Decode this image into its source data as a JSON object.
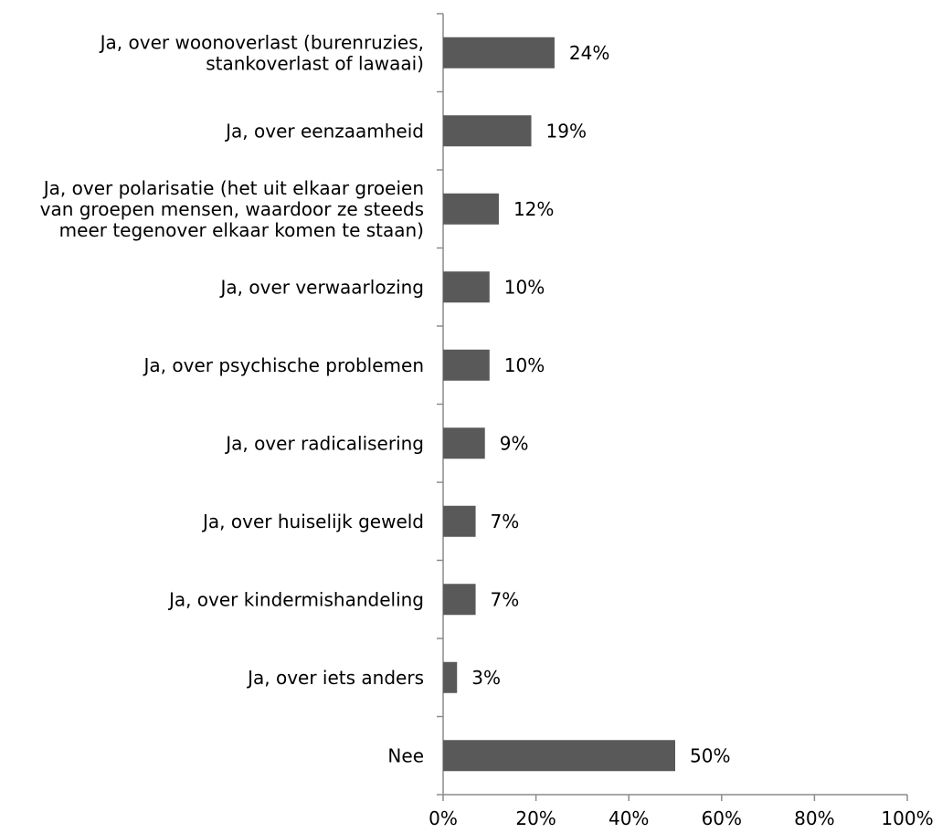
{
  "chart_data": {
    "type": "bar",
    "orientation": "horizontal",
    "categories": [
      [
        "Ja, over woonoverlast (burenruzies,",
        "stankoverlast of lawaai)"
      ],
      [
        "Ja, over eenzaamheid"
      ],
      [
        "Ja, over polarisatie (het uit elkaar groeien",
        "van groepen mensen, waardoor ze steeds",
        "meer tegenover elkaar komen te staan)"
      ],
      [
        "Ja, over verwaarlozing"
      ],
      [
        "Ja, over psychische problemen"
      ],
      [
        "Ja, over radicalisering"
      ],
      [
        "Ja, over huiselijk geweld"
      ],
      [
        "Ja, over kindermishandeling"
      ],
      [
        "Ja, over iets anders"
      ],
      [
        "Nee"
      ]
    ],
    "values": [
      24,
      19,
      12,
      10,
      10,
      9,
      7,
      7,
      3,
      50
    ],
    "value_labels": [
      "24%",
      "19%",
      "12%",
      "10%",
      "10%",
      "9%",
      "7%",
      "7%",
      "3%",
      "50%"
    ],
    "xlim": [
      0,
      100
    ],
    "xticks": [
      0,
      20,
      40,
      60,
      80,
      100
    ],
    "xtick_labels": [
      "0%",
      "20%",
      "40%",
      "60%",
      "80%",
      "100%"
    ],
    "bar_color": "#595959",
    "axis_color": "#8c8c8c",
    "grid": false,
    "legend": "none"
  }
}
